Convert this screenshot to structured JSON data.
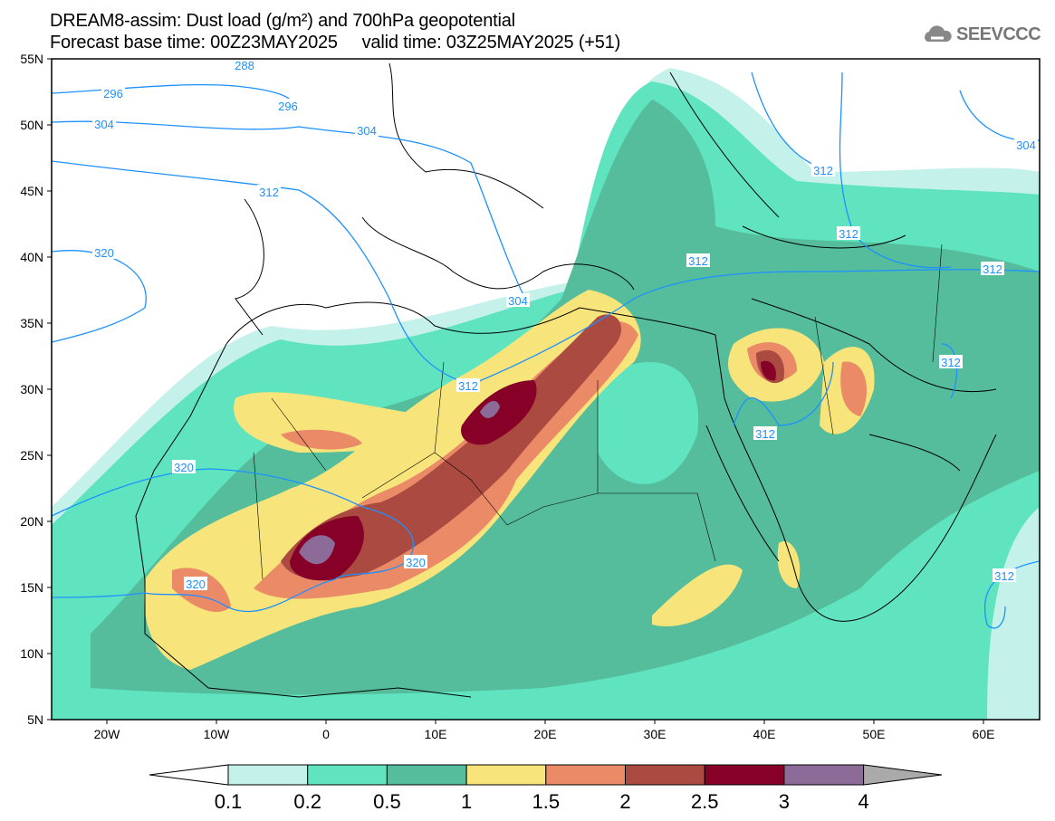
{
  "header": {
    "title_line1": "DREAM8-assim: Dust load (g/m²) and 700hPa geopotential",
    "title_line2": "Forecast base time: 00Z23MAY2025     valid time: 03Z25MAY2025 (+51)",
    "logo_text": "SEEVCCC"
  },
  "axes": {
    "lat_labels": [
      "55N",
      "50N",
      "45N",
      "40N",
      "35N",
      "30N",
      "25N",
      "20N",
      "15N",
      "10N",
      "5N"
    ],
    "lon_labels": [
      "20W",
      "10W",
      "0",
      "10E",
      "20E",
      "30E",
      "40E",
      "50E",
      "60E"
    ]
  },
  "contour_labels": [
    "288",
    "296",
    "296",
    "304",
    "304",
    "312",
    "320",
    "304",
    "312",
    "320",
    "320",
    "320",
    "312",
    "312",
    "312",
    "312",
    "312",
    "312",
    "304",
    "312"
  ],
  "colorbar": {
    "ticks": [
      "0.1",
      "0.2",
      "0.5",
      "1",
      "1.5",
      "2",
      "2.5",
      "3",
      "4"
    ],
    "colors": [
      "#ffffff",
      "#c4f1ea",
      "#5fe4bf",
      "#55bd9c",
      "#f7e57b",
      "#ea8a67",
      "#aa4a40",
      "#860028",
      "#8d6b99",
      "#aaaaaa"
    ]
  },
  "colors": {
    "contour": "#1e90ff",
    "map_bg": "#ffffff"
  }
}
